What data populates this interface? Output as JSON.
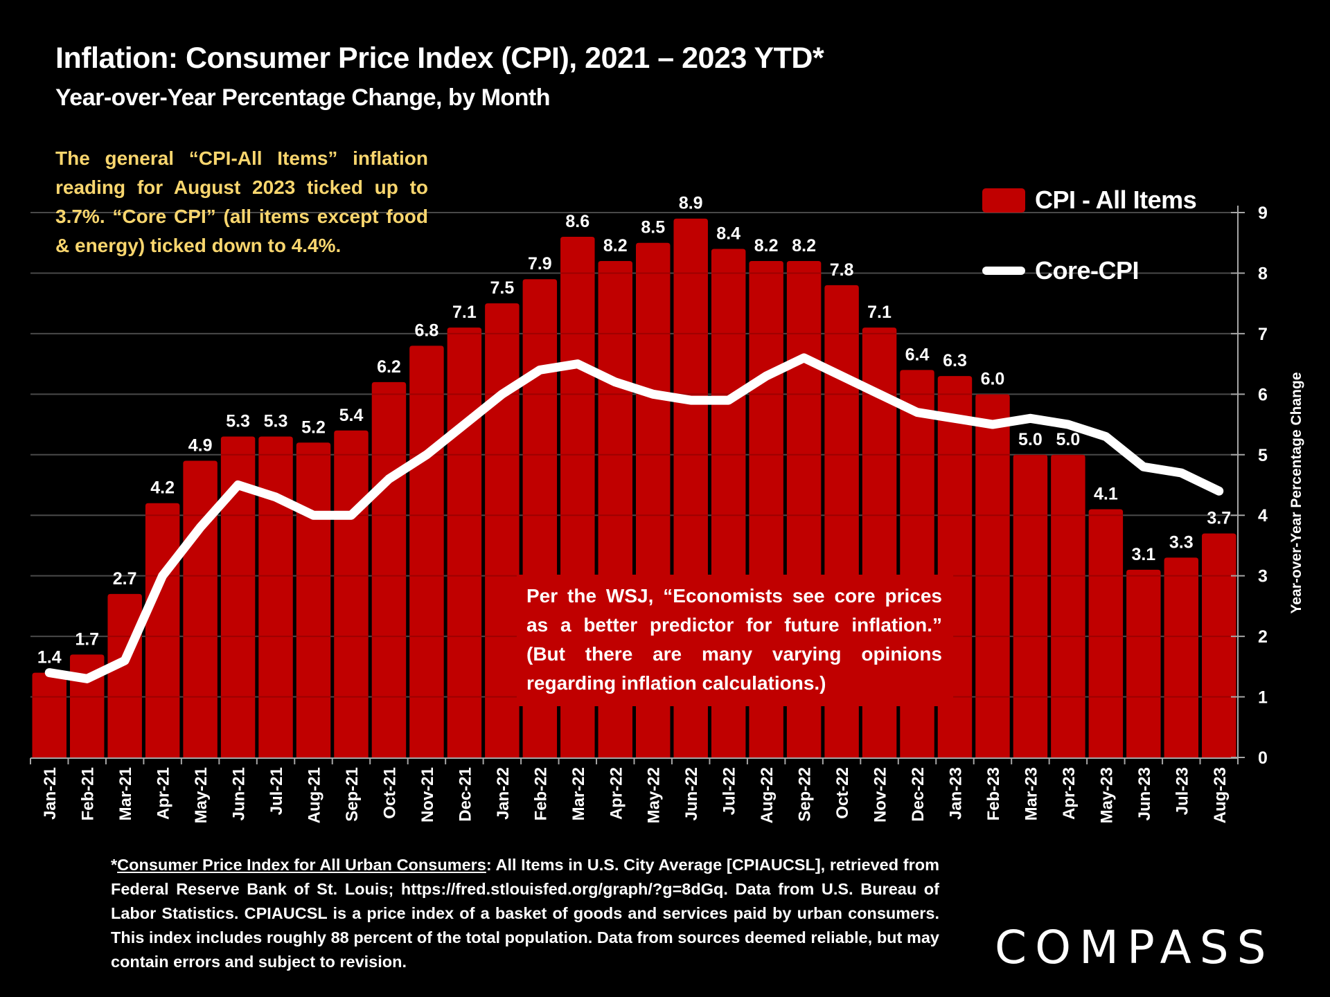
{
  "header": {
    "title": "Inflation: Consumer Price Index (CPI), 2021 – 2023 YTD*",
    "subtitle": "Year-over-Year Percentage Change, by Month"
  },
  "annotations": {
    "yellow_note": "The general “CPI-All Items” inflation reading for August 2023 ticked up to 3.7%. “Core CPI” (all items except food & energy) ticked down to 4.4%.",
    "wsj_note": "Per the WSJ, “Economists see core prices as a better predictor for future inflation.” (But there are many varying opinions regarding inflation calculations.)"
  },
  "legend": {
    "items": [
      {
        "label": "CPI - All Items",
        "type": "bar",
        "color": "#c00000"
      },
      {
        "label": "Core-CPI",
        "type": "line",
        "color": "#ffffff"
      }
    ]
  },
  "footnote": {
    "link_text": "Consumer Price Index for All Urban Consumers",
    "prefix": "*",
    "text": ": All Items in U.S. City Average [CPIAUCSL], retrieved from Federal Reserve Bank of St. Louis; https://fred.stlouisfed.org/graph/?g=8dGq. Data from U.S. Bureau of Labor Statistics. CPIAUCSL is a price index of a basket of goods and services paid by urban consumers. This index includes roughly 88 percent of the total population. Data from sources deemed reliable, but may contain errors and subject to revision."
  },
  "brand": {
    "logo_text": "COMPASS"
  },
  "colors": {
    "background": "#000000",
    "bar": "#c00000",
    "core_line": "#ffffff",
    "note_text": "#f9d66e",
    "gridline": "#595959",
    "axis": "#a6a6a6"
  },
  "chart_data": {
    "type": "bar",
    "title": "Inflation: Consumer Price Index (CPI), 2021 – 2023 YTD*",
    "subtitle": "Year-over-Year Percentage Change, by Month",
    "xlabel": "",
    "ylabel": "Year-over-Year Percentage Change",
    "y_axis_side": "right",
    "ylim": [
      0,
      9
    ],
    "yticks": [
      0,
      1,
      2,
      3,
      4,
      5,
      6,
      7,
      8,
      9
    ],
    "grid": true,
    "legend_position": "top-right",
    "categories": [
      "Jan-21",
      "Feb-21",
      "Mar-21",
      "Apr-21",
      "May-21",
      "Jun-21",
      "Jul-21",
      "Aug-21",
      "Sep-21",
      "Oct-21",
      "Nov-21",
      "Dec-21",
      "Jan-22",
      "Feb-22",
      "Mar-22",
      "Apr-22",
      "May-22",
      "Jun-22",
      "Jul-22",
      "Aug-22",
      "Sep-22",
      "Oct-22",
      "Nov-22",
      "Dec-22",
      "Jan-23",
      "Feb-23",
      "Mar-23",
      "Apr-23",
      "May-23",
      "Jun-23",
      "Jul-23",
      "Aug-23"
    ],
    "series": [
      {
        "name": "CPI - All Items",
        "type": "bar",
        "labels_shown": true,
        "values": [
          1.4,
          1.7,
          2.7,
          4.2,
          4.9,
          5.3,
          5.3,
          5.2,
          5.4,
          6.2,
          6.8,
          7.1,
          7.5,
          7.9,
          8.6,
          8.2,
          8.5,
          8.9,
          8.4,
          8.2,
          8.2,
          7.8,
          7.1,
          6.4,
          6.3,
          6.0,
          5.0,
          5.0,
          4.1,
          3.1,
          3.3,
          3.7
        ]
      },
      {
        "name": "Core-CPI",
        "type": "line",
        "labels_shown": false,
        "values": [
          1.4,
          1.3,
          1.6,
          3.0,
          3.8,
          4.5,
          4.3,
          4.0,
          4.0,
          4.6,
          5.0,
          5.5,
          6.0,
          6.4,
          6.5,
          6.2,
          6.0,
          5.9,
          5.9,
          6.3,
          6.6,
          6.3,
          6.0,
          5.7,
          5.6,
          5.5,
          5.6,
          5.5,
          5.3,
          4.8,
          4.7,
          4.4
        ]
      }
    ]
  }
}
